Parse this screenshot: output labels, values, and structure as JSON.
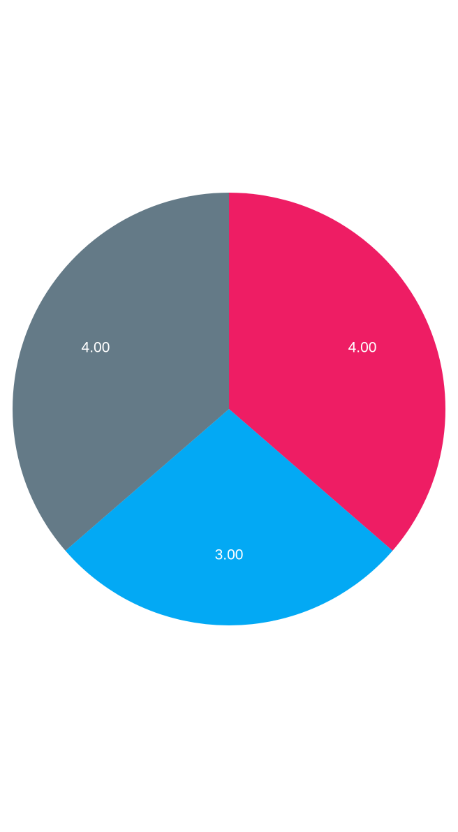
{
  "chart_data": {
    "type": "pie",
    "slices": [
      {
        "label": "4.00",
        "value": 4.0,
        "color": "#EE1D64"
      },
      {
        "label": "3.00",
        "value": 3.0,
        "color": "#03A9F4"
      },
      {
        "label": "4.00",
        "value": 4.0,
        "color": "#647A87"
      }
    ],
    "start_angle_deg": 0,
    "direction": "clockwise"
  }
}
